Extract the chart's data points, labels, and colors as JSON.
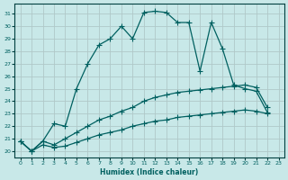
{
  "xlabel": "Humidex (Indice chaleur)",
  "ylabel": "",
  "background_color": "#c8e8e8",
  "grid_color": "#b0c8c8",
  "line_color": "#006060",
  "xlim": [
    -0.5,
    23.5
  ],
  "ylim": [
    19.5,
    31.8
  ],
  "yticks": [
    20,
    21,
    22,
    23,
    24,
    25,
    26,
    27,
    28,
    29,
    30,
    31
  ],
  "xticks": [
    0,
    1,
    2,
    3,
    4,
    5,
    6,
    7,
    8,
    9,
    10,
    11,
    12,
    13,
    14,
    15,
    16,
    17,
    18,
    19,
    20,
    21,
    22,
    23
  ],
  "series": [
    {
      "x": [
        0,
        1,
        2,
        3,
        4,
        5,
        6,
        7,
        8,
        9,
        10,
        11,
        12,
        13,
        14,
        15,
        16,
        17,
        18,
        19,
        20,
        21,
        22
      ],
      "y": [
        20.8,
        20.0,
        20.8,
        22.2,
        22.0,
        25.0,
        27.0,
        28.5,
        29.0,
        30.0,
        29.0,
        31.1,
        31.2,
        31.1,
        30.3,
        30.3,
        26.4,
        30.3,
        28.2,
        25.3,
        25.0,
        24.8,
        23.1
      ]
    },
    {
      "x": [
        0,
        1,
        2,
        3,
        4,
        5,
        6,
        7,
        8,
        9,
        10,
        11,
        12,
        13,
        14,
        15,
        16,
        17,
        18,
        19,
        20,
        21,
        22
      ],
      "y": [
        20.8,
        20.0,
        20.8,
        20.5,
        21.0,
        21.5,
        22.0,
        22.5,
        22.8,
        23.2,
        23.5,
        24.0,
        24.3,
        24.5,
        24.7,
        24.8,
        24.9,
        25.0,
        25.1,
        25.2,
        25.3,
        25.1,
        23.5
      ]
    },
    {
      "x": [
        0,
        1,
        2,
        3,
        4,
        5,
        6,
        7,
        8,
        9,
        10,
        11,
        12,
        13,
        14,
        15,
        16,
        17,
        18,
        19,
        20,
        21,
        22
      ],
      "y": [
        20.8,
        20.0,
        20.5,
        20.3,
        20.4,
        20.7,
        21.0,
        21.3,
        21.5,
        21.7,
        22.0,
        22.2,
        22.4,
        22.5,
        22.7,
        22.8,
        22.9,
        23.0,
        23.1,
        23.2,
        23.3,
        23.2,
        23.0
      ]
    }
  ]
}
